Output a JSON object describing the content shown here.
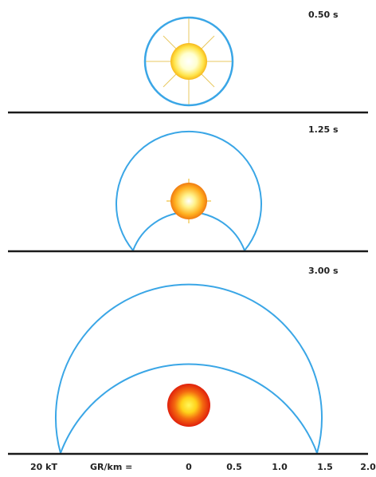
{
  "colors": {
    "shock": "#3aa6e6",
    "ground": "#1a1a1a",
    "rays": "#e8c860"
  },
  "panels": [
    {
      "time_label": "0.50 s"
    },
    {
      "time_label": "1.25 s"
    },
    {
      "time_label": "3.00 s"
    }
  ],
  "axis": {
    "yield_label": "20 kT",
    "distance_label": "GR/km =",
    "ticks": [
      "0",
      "0.5",
      "1.0",
      "1.5",
      "2.0"
    ]
  }
}
